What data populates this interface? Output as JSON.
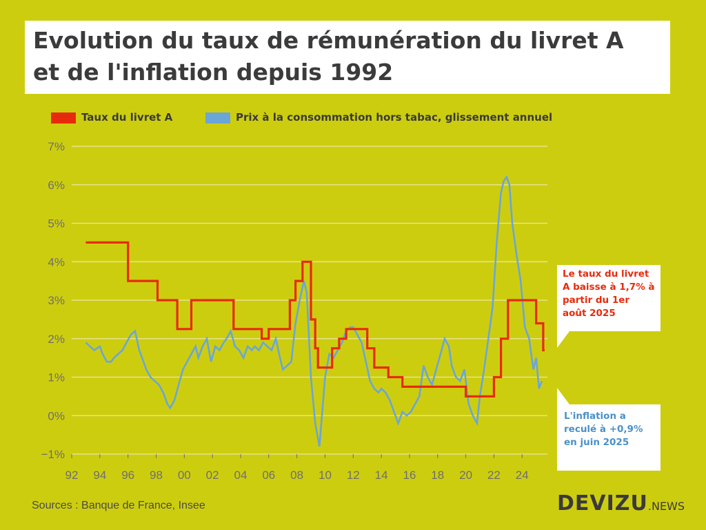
{
  "title": {
    "line1": "Evolution du taux de rémunération du livret A",
    "line2": "et de l'inflation depuis 1992"
  },
  "legend": [
    {
      "label": "Taux du livret A",
      "color": "#e82a0c"
    },
    {
      "label": "Prix à la consommation hors tabac, glissement annuel",
      "color": "#6aa6d8"
    }
  ],
  "notes": {
    "red": "Le taux du livret A baisse à 1,7% à partir du 1er août 2025",
    "blue": "L'inflation a reculé à +0,9% en juin 2025"
  },
  "sources": "Sources : Banque de France, Insee",
  "brand": {
    "name": "DEVIZU",
    "suffix": ".NEWS"
  },
  "colors": {
    "background": "#cdcd10",
    "livretA": "#e82a0c",
    "inflation": "#6aa6d8",
    "grid": "#e8e8a0"
  },
  "chart_data": {
    "type": "line",
    "title": "Evolution du taux de rémunération du livret A et de l'inflation depuis 1992",
    "xlabel": "",
    "ylabel": "",
    "xlim": [
      1992,
      2025.8
    ],
    "ylim": [
      -1,
      7
    ],
    "yticks": [
      {
        "v": 7,
        "label": "7%"
      },
      {
        "v": 6,
        "label": "6%"
      },
      {
        "v": 5,
        "label": "5%"
      },
      {
        "v": 4,
        "label": "4%"
      },
      {
        "v": 3,
        "label": "3%"
      },
      {
        "v": 2,
        "label": "2%"
      },
      {
        "v": 1,
        "label": "1%"
      },
      {
        "v": 0,
        "label": "0%"
      },
      {
        "v": -1,
        "label": "−1%"
      }
    ],
    "xticks": [
      {
        "v": 1992,
        "label": "92"
      },
      {
        "v": 1994,
        "label": "94"
      },
      {
        "v": 1996,
        "label": "96"
      },
      {
        "v": 1998,
        "label": "98"
      },
      {
        "v": 2000,
        "label": "00"
      },
      {
        "v": 2002,
        "label": "02"
      },
      {
        "v": 2004,
        "label": "04"
      },
      {
        "v": 2006,
        "label": "06"
      },
      {
        "v": 2008,
        "label": "08"
      },
      {
        "v": 2010,
        "label": "10"
      },
      {
        "v": 2012,
        "label": "12"
      },
      {
        "v": 2014,
        "label": "14"
      },
      {
        "v": 2016,
        "label": "16"
      },
      {
        "v": 2018,
        "label": "18"
      },
      {
        "v": 2020,
        "label": "20"
      },
      {
        "v": 2022,
        "label": "22"
      },
      {
        "v": 2024,
        "label": "24"
      }
    ],
    "series": [
      {
        "name": "Taux du livret A",
        "style": "step",
        "x": [
          1993.0,
          1996.0,
          1996.0,
          1998.1,
          1998.1,
          1999.5,
          1999.5,
          2000.5,
          2000.5,
          2003.5,
          2003.5,
          2005.5,
          2005.5,
          2006.0,
          2006.0,
          2007.5,
          2007.5,
          2007.9,
          2007.9,
          2008.4,
          2008.4,
          2009.0,
          2009.0,
          2009.3,
          2009.3,
          2009.5,
          2009.5,
          2010.5,
          2010.5,
          2011.0,
          2011.0,
          2011.5,
          2011.5,
          2013.0,
          2013.0,
          2013.5,
          2013.5,
          2014.5,
          2014.5,
          2015.5,
          2015.5,
          2020.0,
          2020.0,
          2022.0,
          2022.0,
          2022.5,
          2022.5,
          2023.0,
          2023.0,
          2025.0,
          2025.0,
          2025.5,
          2025.5,
          2025.6
        ],
        "values": [
          4.5,
          4.5,
          3.5,
          3.5,
          3.0,
          3.0,
          2.25,
          2.25,
          3.0,
          3.0,
          2.25,
          2.25,
          2.0,
          2.0,
          2.25,
          2.25,
          3.0,
          3.0,
          3.5,
          3.5,
          4.0,
          4.0,
          2.5,
          2.5,
          1.75,
          1.75,
          1.25,
          1.25,
          1.75,
          1.75,
          2.0,
          2.0,
          2.25,
          2.25,
          1.75,
          1.75,
          1.25,
          1.25,
          1.0,
          1.0,
          0.75,
          0.75,
          0.5,
          0.5,
          1.0,
          1.0,
          2.0,
          2.0,
          3.0,
          3.0,
          2.4,
          2.4,
          1.7,
          1.7
        ]
      },
      {
        "name": "Prix à la consommation hors tabac, glissement annuel",
        "style": "line",
        "x": [
          1993.0,
          1993.3,
          1993.6,
          1994.0,
          1994.2,
          1994.5,
          1994.8,
          1995.0,
          1995.3,
          1995.6,
          1995.9,
          1996.2,
          1996.5,
          1996.8,
          1997.0,
          1997.3,
          1997.6,
          1997.9,
          1998.2,
          1998.5,
          1998.8,
          1999.0,
          1999.3,
          1999.6,
          1999.9,
          2000.2,
          2000.5,
          2000.8,
          2001.0,
          2001.3,
          2001.6,
          2001.9,
          2002.2,
          2002.5,
          2002.8,
          2003.0,
          2003.3,
          2003.6,
          2003.9,
          2004.2,
          2004.5,
          2004.8,
          2005.0,
          2005.3,
          2005.6,
          2005.9,
          2006.2,
          2006.5,
          2006.8,
          2007.0,
          2007.3,
          2007.6,
          2007.9,
          2008.2,
          2008.5,
          2008.7,
          2009.0,
          2009.3,
          2009.6,
          2009.8,
          2010.0,
          2010.3,
          2010.6,
          2010.9,
          2011.2,
          2011.5,
          2011.8,
          2012.0,
          2012.3,
          2012.6,
          2012.9,
          2013.2,
          2013.5,
          2013.8,
          2014.0,
          2014.3,
          2014.6,
          2014.9,
          2015.2,
          2015.5,
          2015.8,
          2016.1,
          2016.4,
          2016.7,
          2017.0,
          2017.3,
          2017.6,
          2017.9,
          2018.2,
          2018.5,
          2018.8,
          2019.0,
          2019.3,
          2019.6,
          2019.9,
          2020.2,
          2020.5,
          2020.8,
          2021.0,
          2021.3,
          2021.6,
          2021.9,
          2022.2,
          2022.5,
          2022.7,
          2022.9,
          2023.1,
          2023.3,
          2023.6,
          2023.9,
          2024.2,
          2024.5,
          2024.8,
          2025.0,
          2025.2,
          2025.4
        ],
        "values": [
          1.9,
          1.8,
          1.7,
          1.8,
          1.6,
          1.4,
          1.4,
          1.5,
          1.6,
          1.7,
          1.9,
          2.1,
          2.2,
          1.7,
          1.5,
          1.2,
          1.0,
          0.9,
          0.8,
          0.6,
          0.3,
          0.2,
          0.4,
          0.8,
          1.2,
          1.4,
          1.6,
          1.8,
          1.5,
          1.8,
          2.0,
          1.4,
          1.8,
          1.7,
          1.9,
          2.0,
          2.2,
          1.8,
          1.7,
          1.5,
          1.8,
          1.7,
          1.8,
          1.7,
          1.9,
          1.8,
          1.7,
          2.0,
          1.5,
          1.2,
          1.3,
          1.4,
          2.4,
          3.0,
          3.5,
          3.2,
          1.0,
          -0.2,
          -0.8,
          0.1,
          1.0,
          1.6,
          1.5,
          1.7,
          1.9,
          2.2,
          2.3,
          2.3,
          2.1,
          1.9,
          1.4,
          0.9,
          0.7,
          0.6,
          0.7,
          0.6,
          0.4,
          0.1,
          -0.2,
          0.1,
          0.0,
          0.1,
          0.3,
          0.5,
          1.3,
          1.0,
          0.8,
          1.2,
          1.6,
          2.0,
          1.8,
          1.3,
          1.0,
          0.9,
          1.2,
          0.3,
          0.0,
          -0.2,
          0.5,
          1.2,
          2.0,
          2.8,
          4.5,
          5.8,
          6.1,
          6.2,
          6.0,
          5.0,
          4.2,
          3.5,
          2.3,
          2.0,
          1.2,
          1.5,
          0.7,
          0.9
        ]
      }
    ]
  }
}
